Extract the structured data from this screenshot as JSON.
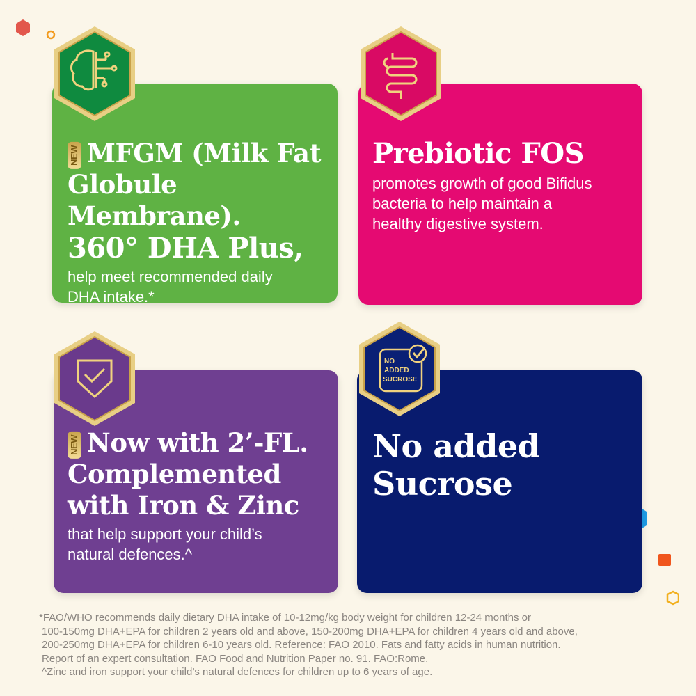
{
  "colors": {
    "background": "#fbf6e9",
    "green": "#5fb244",
    "pink": "#e50a72",
    "purple": "#6f3f91",
    "navy": "#081b6e",
    "gold": "#d9b25a"
  },
  "cards": [
    {
      "new_label": "NEW",
      "title_line1": "MFGM (Milk Fat",
      "title_line2": "Globule Membrane).",
      "title_line3": "360° DHA Plus,",
      "body": "help meet recommended daily DHA intake.*",
      "icon": "brain-circuit-icon"
    },
    {
      "title": "Prebiotic FOS",
      "body": "promotes growth of good Bifidus bacteria to help maintain a healthy digestive system.",
      "icon": "intestine-icon"
    },
    {
      "new_label": "NEW",
      "title_line1": "Now with 2’-FL.",
      "title_line2": "Complemented",
      "title_line3": "with Iron & Zinc",
      "body": "that help support your child’s natural defences.^",
      "icon": "shield-check-icon"
    },
    {
      "title_line1": "No added",
      "title_line2": "Sucrose",
      "badge_text": [
        "NO",
        "ADDED",
        "SUCROSE"
      ],
      "icon": "no-added-sucrose-icon"
    }
  ],
  "footnotes": [
    "*FAO/WHO recommends daily dietary DHA intake of 10-12mg/kg body weight for children 12-24 months or",
    "100-150mg DHA+EPA for children 2 years old and above, 150-200mg DHA+EPA for children 4 years old and above,",
    "200-250mg DHA+EPA for children 6-10 years old. Reference: FAO 2010. Fats and fatty acids in human nutrition.",
    "Report of an expert consultation. FAO Food and Nutrition Paper no. 91. FAO:Rome.",
    "^Zinc and iron support your child’s natural defences for children up to 6 years of age."
  ]
}
